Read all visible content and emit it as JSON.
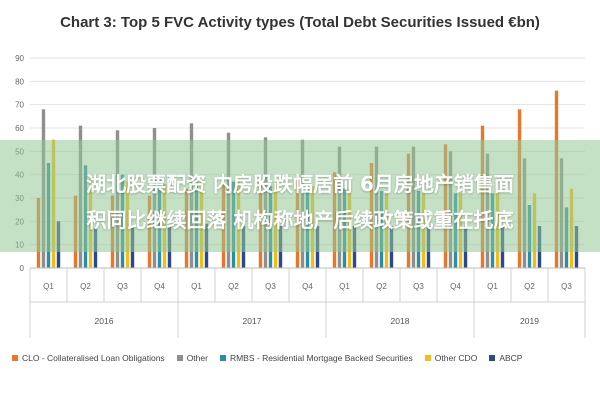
{
  "chart_data": {
    "type": "bar",
    "title": "Chart 3: Top 5 FVC Activity types (Total Debt Securities Issued €bn)",
    "xlabel": "",
    "ylabel": "",
    "ylim": [
      0,
      90
    ],
    "y_ticks": [
      0,
      10,
      20,
      30,
      40,
      50,
      60,
      70,
      80,
      90
    ],
    "grid": true,
    "legend_position": "bottom",
    "categories": [
      "Q1",
      "Q2",
      "Q3",
      "Q4",
      "Q1",
      "Q2",
      "Q3",
      "Q4",
      "Q1",
      "Q2",
      "Q3",
      "Q4",
      "Q1",
      "Q2",
      "Q3"
    ],
    "years": [
      {
        "label": "2016",
        "start": 0,
        "end": 3
      },
      {
        "label": "2017",
        "start": 4,
        "end": 7
      },
      {
        "label": "2018",
        "start": 8,
        "end": 11
      },
      {
        "label": "2019",
        "start": 12,
        "end": 14
      }
    ],
    "series": [
      {
        "name": "CLO - Collateralised Loan Obligations",
        "color": "#e8762b",
        "values": [
          30,
          31,
          31,
          31,
          34,
          36,
          37,
          39,
          41,
          45,
          49,
          53,
          61,
          68,
          76
        ]
      },
      {
        "name": "Other",
        "color": "#8f8f8f",
        "values": [
          68,
          61,
          59,
          60,
          62,
          58,
          56,
          55,
          52,
          52,
          52,
          50,
          49,
          47,
          47
        ]
      },
      {
        "name": "RMBS - Residential Mortgage Backed Securities",
        "color": "#2b8fa3",
        "values": [
          45,
          44,
          40,
          38,
          38,
          37,
          35,
          34,
          34,
          33,
          33,
          32,
          32,
          27,
          26
        ]
      },
      {
        "name": "Other CDO",
        "color": "#f2bc1b",
        "values": [
          55,
          38,
          37,
          36,
          38,
          37,
          36,
          35,
          34,
          33,
          32,
          32,
          33,
          32,
          34
        ]
      },
      {
        "name": "ABCP",
        "color": "#2a4a8c",
        "values": [
          20,
          17,
          18,
          18,
          19,
          18,
          18,
          18,
          18,
          18,
          18,
          18,
          18,
          18,
          18
        ]
      }
    ]
  },
  "overlay": {
    "line1": "湖北股票配资 内房股跌幅居前 6月房地产销售面",
    "line2": "积同比继续回落 机构称地产后续政策或重在托底"
  }
}
